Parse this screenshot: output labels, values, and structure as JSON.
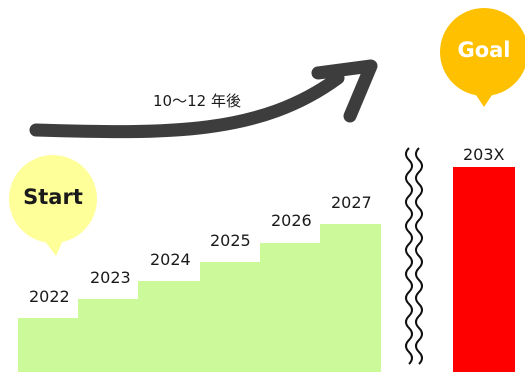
{
  "arrow_label": "10〜12 年後",
  "start_label": "Start",
  "goal_label": "Goal",
  "steps": [
    "2022",
    "2023",
    "2024",
    "2025",
    "2026",
    "2027"
  ],
  "goal_year": "203X",
  "colors": {
    "step_fill": "#ccf99a",
    "start_bubble": "#ffff99",
    "goal_bubble": "#ffc000",
    "goal_bar": "#ff0000",
    "arrow": "#3d3d3d"
  }
}
